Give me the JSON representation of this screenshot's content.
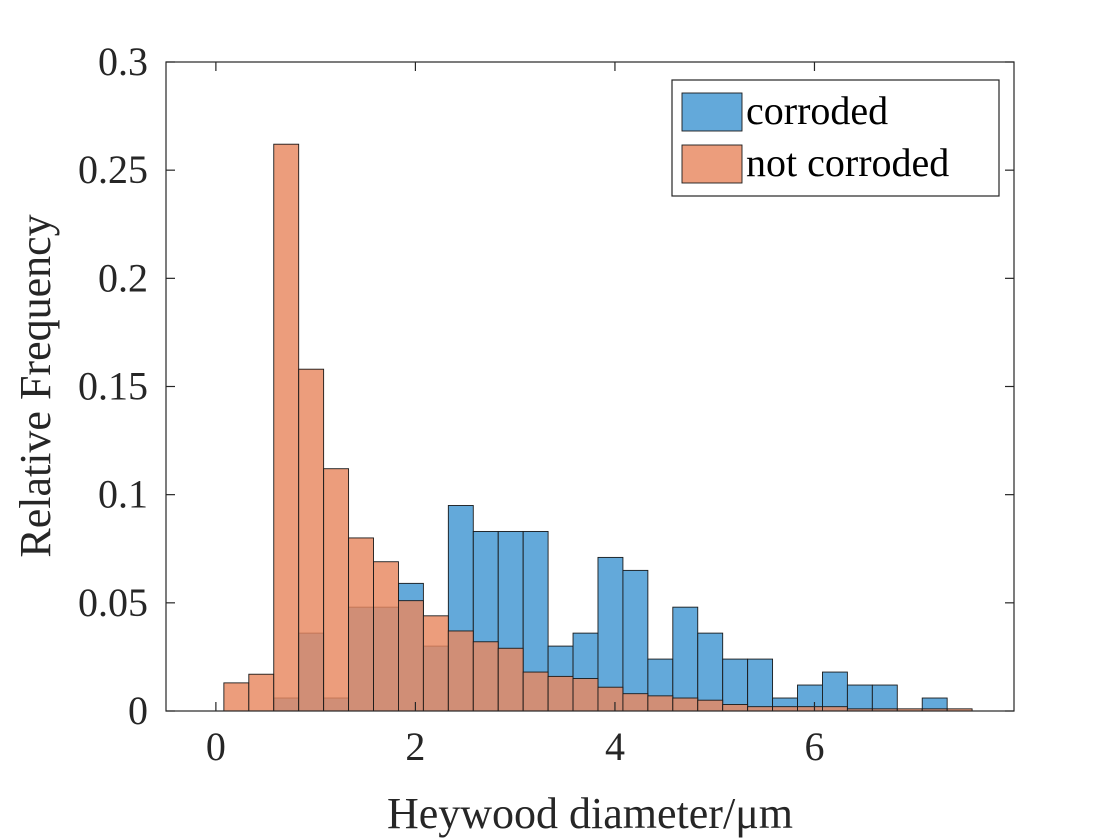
{
  "chart_data": {
    "type": "bar",
    "xlabel": "Heywood diameter/μm",
    "ylabel": "Relative Frequency",
    "xlim": [
      -0.5,
      8
    ],
    "ylim": [
      0,
      0.3
    ],
    "xticks": [
      0,
      2,
      4,
      6
    ],
    "yticks": [
      0,
      0.05,
      0.1,
      0.15,
      0.2,
      0.25,
      0.3
    ],
    "ytick_labels": [
      "0",
      "0.05",
      "0.1",
      "0.15",
      "0.2",
      "0.25",
      "0.3"
    ],
    "bin_width": 0.25,
    "legend_position": "top-right",
    "series": [
      {
        "name": "corroded",
        "color": "#4d9dd5",
        "opacity": 0.88,
        "bins": [
          [
            0.58,
            0.83,
            0.006
          ],
          [
            0.83,
            1.08,
            0.036
          ],
          [
            1.08,
            1.33,
            0.006
          ],
          [
            1.33,
            1.58,
            0.048
          ],
          [
            1.58,
            1.83,
            0.048
          ],
          [
            1.83,
            2.08,
            0.059
          ],
          [
            2.08,
            2.33,
            0.03
          ],
          [
            2.33,
            2.58,
            0.095
          ],
          [
            2.58,
            2.83,
            0.083
          ],
          [
            2.83,
            3.08,
            0.083
          ],
          [
            3.08,
            3.33,
            0.083
          ],
          [
            3.33,
            3.58,
            0.03
          ],
          [
            3.58,
            3.83,
            0.036
          ],
          [
            3.83,
            4.08,
            0.071
          ],
          [
            4.08,
            4.33,
            0.065
          ],
          [
            4.33,
            4.58,
            0.024
          ],
          [
            4.58,
            4.83,
            0.048
          ],
          [
            4.83,
            5.08,
            0.036
          ],
          [
            5.08,
            5.33,
            0.024
          ],
          [
            5.33,
            5.58,
            0.024
          ],
          [
            5.58,
            5.83,
            0.006
          ],
          [
            5.83,
            6.08,
            0.012
          ],
          [
            6.08,
            6.33,
            0.018
          ],
          [
            6.33,
            6.58,
            0.012
          ],
          [
            6.58,
            6.83,
            0.012
          ],
          [
            7.08,
            7.33,
            0.006
          ]
        ]
      },
      {
        "name": "not corroded",
        "color": "#e8875f",
        "opacity": 0.82,
        "bins": [
          [
            0.08,
            0.33,
            0.013
          ],
          [
            0.33,
            0.58,
            0.017
          ],
          [
            0.58,
            0.83,
            0.262
          ],
          [
            0.83,
            1.08,
            0.158
          ],
          [
            1.08,
            1.33,
            0.112
          ],
          [
            1.33,
            1.58,
            0.08
          ],
          [
            1.58,
            1.83,
            0.069
          ],
          [
            1.83,
            2.08,
            0.051
          ],
          [
            2.08,
            2.33,
            0.044
          ],
          [
            2.33,
            2.58,
            0.037
          ],
          [
            2.58,
            2.83,
            0.032
          ],
          [
            2.83,
            3.08,
            0.029
          ],
          [
            3.08,
            3.33,
            0.018
          ],
          [
            3.33,
            3.58,
            0.016
          ],
          [
            3.58,
            3.83,
            0.015
          ],
          [
            3.83,
            4.08,
            0.011
          ],
          [
            4.08,
            4.33,
            0.008
          ],
          [
            4.33,
            4.58,
            0.007
          ],
          [
            4.58,
            4.83,
            0.006
          ],
          [
            4.83,
            5.08,
            0.005
          ],
          [
            5.08,
            5.33,
            0.003
          ],
          [
            5.33,
            5.58,
            0.002
          ],
          [
            5.58,
            5.83,
            0.002
          ],
          [
            5.83,
            6.08,
            0.002
          ],
          [
            6.08,
            6.33,
            0.002
          ],
          [
            6.33,
            6.58,
            0.001
          ],
          [
            6.58,
            6.83,
            0.001
          ],
          [
            6.83,
            7.08,
            0.001
          ],
          [
            7.08,
            7.33,
            0.001
          ],
          [
            7.33,
            7.58,
            0.001
          ]
        ]
      }
    ]
  }
}
